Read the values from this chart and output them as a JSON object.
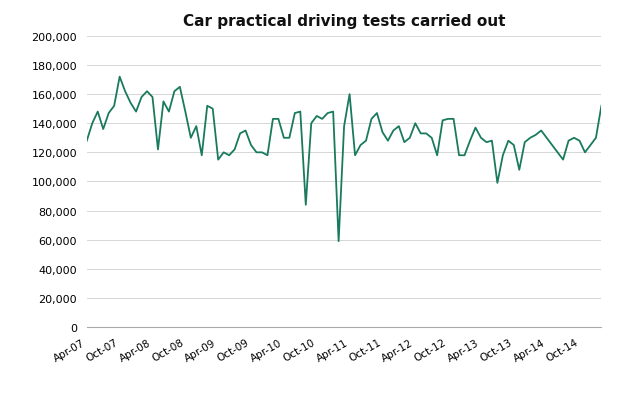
{
  "title": "Car practical driving tests carried out",
  "line_color": "#1a7a5e",
  "background_color": "#ffffff",
  "ylim": [
    0,
    200000
  ],
  "ytick_step": 20000,
  "values": [
    128000,
    140000,
    148000,
    136000,
    147000,
    152000,
    172000,
    162000,
    154000,
    148000,
    158000,
    162000,
    158000,
    122000,
    155000,
    148000,
    162000,
    165000,
    148000,
    130000,
    138000,
    118000,
    152000,
    150000,
    115000,
    120000,
    118000,
    122000,
    133000,
    135000,
    125000,
    120000,
    120000,
    118000,
    143000,
    143000,
    130000,
    130000,
    147000,
    148000,
    84000,
    140000,
    145000,
    143000,
    147000,
    148000,
    59000,
    138000,
    160000,
    118000,
    125000,
    128000,
    143000,
    147000,
    134000,
    128000,
    135000,
    138000,
    127000,
    130000,
    140000,
    133000,
    133000,
    130000,
    118000,
    142000,
    143000,
    143000,
    118000,
    118000,
    128000,
    137000,
    130000,
    127000,
    128000,
    99000,
    118000,
    128000,
    125000,
    108000,
    127000,
    130000,
    132000,
    135000,
    130000,
    125000,
    120000,
    115000,
    128000,
    130000,
    128000,
    120000,
    125000,
    130000,
    152000
  ],
  "xtick_labels": [
    "Apr-07",
    "Oct-07",
    "Apr-08",
    "Oct-08",
    "Apr-09",
    "Oct-09",
    "Apr-10",
    "Oct-10",
    "Apr-11",
    "Oct-11",
    "Apr-12",
    "Oct-12",
    "Apr-13",
    "Oct-13",
    "Apr-14",
    "Oct-14"
  ],
  "xtick_positions": [
    0,
    6,
    12,
    18,
    24,
    30,
    36,
    42,
    48,
    54,
    60,
    66,
    72,
    78,
    84,
    90
  ],
  "figsize": [
    6.2,
    4.1
  ],
  "dpi": 100
}
